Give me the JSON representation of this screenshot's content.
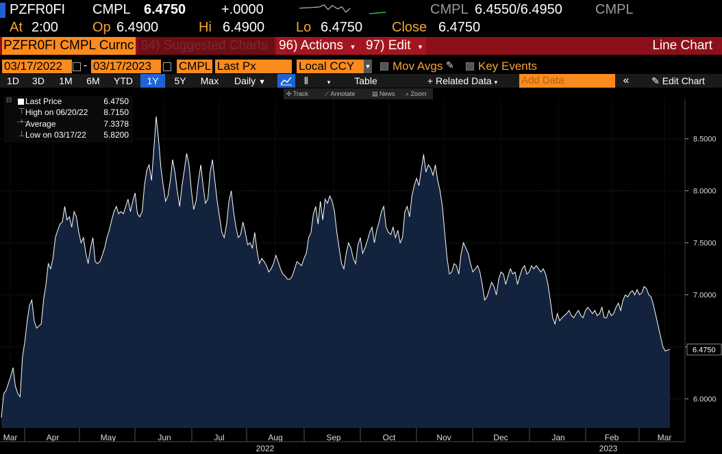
{
  "quote": {
    "ticker": "PZFR0FI",
    "source": "CMPL",
    "last": "6.4750",
    "change": "+.0000",
    "src2": "CMPL",
    "bid_ask": "6.4550/6.4950",
    "src3": "CMPL",
    "at_label": "At",
    "at_value": "2:00",
    "op_label": "Op",
    "op_value": "6.4900",
    "hi_label": "Hi",
    "hi_value": "6.4900",
    "lo_label": "Lo",
    "lo_value": "6.4750",
    "close_label": "Close",
    "close_value": "6.4750"
  },
  "command_bar": {
    "security_field": "PZFR0FI CMPL Curnc",
    "suggested": "94) Suggested Charts",
    "actions": "96) Actions",
    "edit": "97) Edit",
    "view_title": "Line Chart"
  },
  "settings": {
    "start_date": "03/17/2022",
    "end_date": "03/17/2023",
    "source": "CMPL",
    "field": "Last Px",
    "currency": "Local CCY",
    "mov_avgs": "Mov Avgs",
    "key_events": "Key Events"
  },
  "periods": {
    "items": [
      "1D",
      "3D",
      "1M",
      "6M",
      "YTD",
      "1Y",
      "5Y",
      "Max"
    ],
    "active": "1Y",
    "frequency": "Daily",
    "table": "Table",
    "related": "+ Related Data",
    "add_data_placeholder": "Add Data",
    "edit_chart": "Edit Chart"
  },
  "tools": {
    "track": "Track",
    "annotate": "Annotate",
    "news": "News",
    "zoom": "Zoom"
  },
  "legend": {
    "last_label": "Last Price",
    "last_value": "6.4750",
    "high_label": "High on 06/20/22",
    "high_value": "8.7150",
    "avg_label": "Average",
    "avg_value": "7.3378",
    "low_label": "Low on 03/17/22",
    "low_value": "5.8200"
  },
  "colors": {
    "amber": "#f4a43a",
    "orange_field": "#fb8b1e",
    "red_bar": "#8c0f19",
    "area_fill": "#14233d",
    "line": "#ffffff"
  },
  "chart_data": {
    "type": "area",
    "series": [
      {
        "values": [
          5.82,
          6.05,
          6.08,
          6.15,
          6.22,
          6.3,
          6.12,
          6.05,
          6.02,
          6.4,
          6.55,
          6.75,
          6.9,
          6.95,
          6.75,
          6.68,
          6.7,
          6.72,
          6.95,
          7.1,
          7.3,
          7.25,
          7.35,
          7.55,
          7.62,
          7.68,
          7.7,
          7.85,
          7.72,
          7.75,
          7.65,
          7.8,
          7.75,
          7.6,
          7.5,
          7.55,
          7.4,
          7.3,
          7.45,
          7.55,
          7.32,
          7.3,
          7.32,
          7.38,
          7.45,
          7.55,
          7.62,
          7.72,
          7.8,
          7.85,
          7.78,
          7.8,
          7.78,
          7.85,
          7.92,
          7.8,
          7.9,
          7.98,
          7.78,
          7.75,
          7.8,
          8.05,
          8.2,
          8.25,
          8.1,
          8.4,
          8.715,
          8.5,
          8.22,
          8.05,
          7.9,
          7.95,
          8.1,
          8.3,
          8.18,
          8.0,
          7.85,
          8.05,
          8.2,
          8.36,
          8.25,
          8.0,
          7.82,
          7.9,
          8.1,
          8.25,
          8.05,
          7.88,
          7.92,
          8.18,
          8.3,
          8.1,
          7.9,
          7.75,
          7.6,
          7.55,
          7.68,
          7.9,
          8.0,
          7.8,
          7.65,
          7.55,
          7.58,
          7.7,
          7.6,
          7.48,
          7.5,
          7.45,
          7.6,
          7.42,
          7.3,
          7.35,
          7.32,
          7.28,
          7.22,
          7.25,
          7.3,
          7.38,
          7.32,
          7.25,
          7.2,
          7.18,
          7.15,
          7.15,
          7.18,
          7.25,
          7.32,
          7.3,
          7.28,
          7.35,
          7.4,
          7.55,
          7.6,
          7.78,
          7.85,
          7.68,
          7.9,
          7.72,
          7.92,
          7.88,
          7.95,
          7.9,
          7.8,
          7.6,
          7.45,
          7.3,
          7.25,
          7.4,
          7.5,
          7.45,
          7.35,
          7.3,
          7.48,
          7.55,
          7.4,
          7.45,
          7.52,
          7.6,
          7.65,
          7.5,
          7.62,
          7.7,
          7.8,
          7.85,
          7.65,
          7.6,
          7.58,
          7.65,
          7.55,
          7.62,
          7.5,
          7.55,
          7.8,
          7.85,
          7.75,
          7.95,
          8.05,
          8.12,
          8.05,
          8.2,
          8.35,
          8.18,
          8.25,
          8.22,
          8.15,
          8.25,
          8.1,
          8.0,
          7.85,
          7.6,
          7.35,
          7.2,
          7.22,
          7.3,
          7.28,
          7.2,
          7.4,
          7.5,
          7.45,
          7.4,
          7.3,
          7.22,
          7.25,
          7.28,
          7.22,
          7.1,
          6.95,
          6.98,
          7.05,
          7.12,
          7.08,
          7.0,
          7.15,
          7.22,
          7.2,
          7.1,
          7.18,
          7.25,
          7.2,
          7.22,
          7.1,
          7.18,
          7.25,
          7.28,
          7.2,
          7.22,
          7.28,
          7.25,
          7.28,
          7.25,
          7.22,
          7.25,
          7.2,
          7.1,
          6.95,
          6.78,
          6.72,
          6.82,
          6.75,
          6.78,
          6.8,
          6.82,
          6.85,
          6.8,
          6.78,
          6.82,
          6.85,
          6.8,
          6.78,
          6.85,
          6.88,
          6.85,
          6.82,
          6.85,
          6.8,
          6.82,
          6.88,
          6.78,
          6.78,
          6.85,
          6.8,
          6.82,
          6.88,
          6.92,
          6.85,
          6.95,
          7.0,
          6.98,
          7.02,
          7.04,
          7.0,
          7.05,
          7.0,
          7.02,
          7.08,
          7.06,
          7.0,
          6.98,
          6.9,
          6.8,
          6.7,
          6.6,
          6.5,
          6.46,
          6.47,
          6.475
        ]
      }
    ],
    "x_start": "2022-03-17",
    "x_end": "2023-03-17",
    "x_ticks": [
      "Mar",
      "Apr",
      "May",
      "Jun",
      "Jul",
      "Aug",
      "Sep",
      "Oct",
      "Nov",
      "Dec",
      "Jan",
      "Feb",
      "Mar"
    ],
    "x_year_labels": [
      "2022",
      "2023"
    ],
    "y_ticks": [
      "6.0000",
      "6.5000",
      "7.0000",
      "7.5000",
      "8.0000",
      "8.5000"
    ],
    "ylim": [
      5.72,
      8.88
    ],
    "last_value_label": "6.4750",
    "grid": true,
    "legend_position": "top-left"
  }
}
